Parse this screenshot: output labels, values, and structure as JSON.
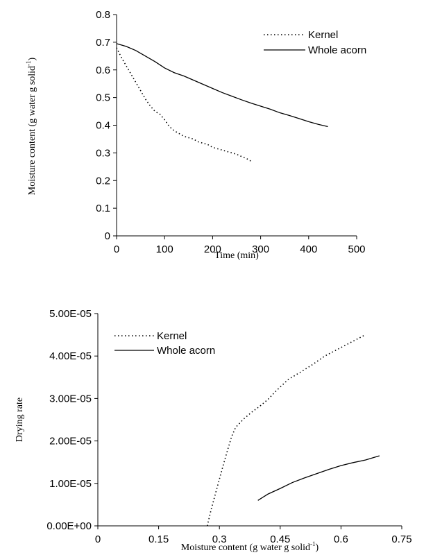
{
  "chart_data": [
    {
      "type": "line",
      "xlabel": "Time (min)",
      "ylabel": {
        "main": "Moisture content (g water g  solid",
        "sup": "-1",
        "end": ")"
      },
      "xlim": [
        0,
        500
      ],
      "ylim": [
        0,
        0.8
      ],
      "xticks": [
        "0",
        "100",
        "200",
        "300",
        "400",
        "500"
      ],
      "yticks": [
        "0",
        "0.1",
        "0.2",
        "0.3",
        "0.4",
        "0.5",
        "0.6",
        "0.7",
        "0.8"
      ],
      "legend": "top-right",
      "series": [
        {
          "name": "Kernel",
          "style": "dotted",
          "x": [
            0,
            10,
            20,
            30,
            40,
            50,
            60,
            70,
            80,
            90,
            100,
            110,
            120,
            130,
            140,
            150,
            160,
            170,
            180,
            190,
            200,
            210,
            220,
            230,
            240,
            250,
            260,
            270,
            280
          ],
          "y": [
            0.68,
            0.645,
            0.615,
            0.585,
            0.555,
            0.525,
            0.495,
            0.47,
            0.45,
            0.44,
            0.42,
            0.395,
            0.38,
            0.37,
            0.36,
            0.355,
            0.35,
            0.34,
            0.335,
            0.33,
            0.32,
            0.315,
            0.31,
            0.305,
            0.3,
            0.295,
            0.287,
            0.28,
            0.27
          ]
        },
        {
          "name": "Whole acorn",
          "style": "solid",
          "x": [
            0,
            20,
            40,
            60,
            80,
            100,
            120,
            140,
            160,
            180,
            200,
            220,
            240,
            260,
            280,
            300,
            320,
            340,
            360,
            380,
            400,
            420,
            440
          ],
          "y": [
            0.695,
            0.685,
            0.67,
            0.65,
            0.63,
            0.607,
            0.59,
            0.578,
            0.563,
            0.548,
            0.533,
            0.518,
            0.505,
            0.492,
            0.48,
            0.469,
            0.458,
            0.445,
            0.435,
            0.424,
            0.413,
            0.403,
            0.395
          ]
        }
      ]
    },
    {
      "type": "line",
      "xlabel": {
        "main": "Moisture content (g water g  solid",
        "sup": "-1",
        "end": ")"
      },
      "ylabel": "Drying rate",
      "xlim": [
        0,
        0.75
      ],
      "ylim": [
        0,
        5e-05
      ],
      "xticks": [
        "0",
        "0.15",
        "0.3",
        "0.45",
        "0.6",
        "0.75"
      ],
      "yticks": [
        "0.00E+00",
        "1.00E-05",
        "2.00E-05",
        "3.00E-05",
        "4.00E-05",
        "5.00E-05"
      ],
      "legend": "top-left",
      "series": [
        {
          "name": "Kernel",
          "style": "dotted",
          "x": [
            0.27,
            0.28,
            0.29,
            0.3,
            0.31,
            0.32,
            0.33,
            0.34,
            0.36,
            0.38,
            0.4,
            0.42,
            0.44,
            0.47,
            0.5,
            0.53,
            0.56,
            0.59,
            0.62,
            0.64,
            0.66
          ],
          "y": [
            0.0,
            4e-06,
            7.5e-06,
            1.1e-05,
            1.45e-05,
            1.78e-05,
            2.1e-05,
            2.32e-05,
            2.52e-05,
            2.68e-05,
            2.82e-05,
            2.98e-05,
            3.18e-05,
            3.45e-05,
            3.62e-05,
            3.8e-05,
            4e-05,
            4.15e-05,
            4.3e-05,
            4.4e-05,
            4.5e-05
          ]
        },
        {
          "name": "Whole acorn",
          "style": "solid",
          "x": [
            0.395,
            0.42,
            0.45,
            0.48,
            0.51,
            0.54,
            0.57,
            0.6,
            0.63,
            0.66,
            0.695
          ],
          "y": [
            6e-06,
            7.5e-06,
            8.8e-06,
            1.02e-05,
            1.13e-05,
            1.23e-05,
            1.33e-05,
            1.42e-05,
            1.49e-05,
            1.55e-05,
            1.65e-05
          ]
        }
      ]
    }
  ]
}
